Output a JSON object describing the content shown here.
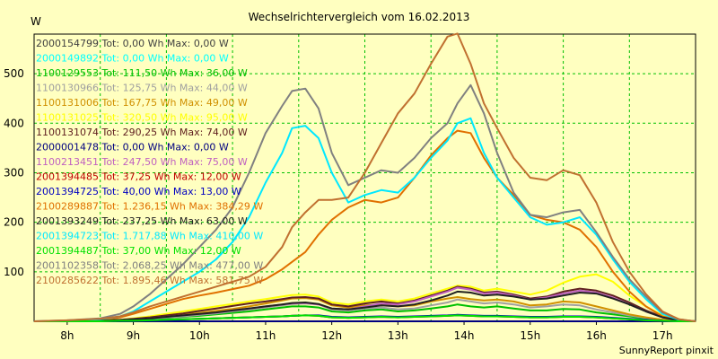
{
  "chart_data": {
    "type": "line",
    "title": "Wechselrichtervergleich vom 16.02.2013",
    "ylabel": "W",
    "footer": "SunnyReport pinxit",
    "ylim": [
      0,
      580
    ],
    "xlim": [
      7.5,
      17.5
    ],
    "grid": true,
    "legend_placement": "top-left",
    "yticks": [
      100,
      200,
      300,
      400,
      500
    ],
    "xticks": [
      {
        "value": 8,
        "label": "8h"
      },
      {
        "value": 9,
        "label": "9h"
      },
      {
        "value": 10,
        "label": "10h"
      },
      {
        "value": 11,
        "label": "11h"
      },
      {
        "value": 12,
        "label": "12h"
      },
      {
        "value": 13,
        "label": "13h"
      },
      {
        "value": 14,
        "label": "14h"
      },
      {
        "value": 15,
        "label": "15h"
      },
      {
        "value": 16,
        "label": "16h"
      },
      {
        "value": 17,
        "label": "17h"
      }
    ],
    "x": [
      7.5,
      8.0,
      8.5,
      8.8,
      9.0,
      9.25,
      9.5,
      9.75,
      10.0,
      10.25,
      10.5,
      10.75,
      11.0,
      11.25,
      11.4,
      11.6,
      11.8,
      12.0,
      12.25,
      12.5,
      12.75,
      13.0,
      13.25,
      13.5,
      13.75,
      13.9,
      14.1,
      14.3,
      14.5,
      14.75,
      15.0,
      15.25,
      15.5,
      15.75,
      16.0,
      16.25,
      16.5,
      16.75,
      17.0,
      17.25,
      17.5
    ],
    "series": [
      {
        "name": "2000154799 Tot: 0,00 Wh Max: 0,00 W",
        "color": "#404040",
        "values": [
          0,
          0,
          0,
          0,
          0,
          0,
          0,
          0,
          0,
          0,
          0,
          0,
          0,
          0,
          0,
          0,
          0,
          0,
          0,
          0,
          0,
          0,
          0,
          0,
          0,
          0,
          0,
          0,
          0,
          0,
          0,
          0,
          0,
          0,
          0,
          0,
          0,
          0,
          0,
          0,
          0
        ]
      },
      {
        "name": "2000149892 Tot: 0,00 Wh Max: 0,00 W",
        "color": "#00ffff",
        "values": [
          0,
          0,
          0,
          0,
          0,
          0,
          0,
          0,
          0,
          0,
          0,
          0,
          0,
          0,
          0,
          0,
          0,
          0,
          0,
          0,
          0,
          0,
          0,
          0,
          0,
          0,
          0,
          0,
          0,
          0,
          0,
          0,
          0,
          0,
          0,
          0,
          0,
          0,
          0,
          0,
          0
        ]
      },
      {
        "name": "1100129553 Tot: 111,50 Wh Max: 36,00 W",
        "color": "#00c000",
        "values": [
          0,
          0,
          1,
          2,
          3,
          5,
          7,
          9,
          11,
          14,
          17,
          20,
          24,
          28,
          30,
          30,
          28,
          20,
          18,
          22,
          24,
          20,
          22,
          26,
          30,
          34,
          30,
          28,
          30,
          26,
          22,
          22,
          25,
          24,
          18,
          14,
          10,
          6,
          3,
          1,
          0
        ]
      },
      {
        "name": "1100130966 Tot: 125,75 Wh Max: 44,00 W",
        "color": "#a0a0a0",
        "values": [
          0,
          0,
          1,
          2,
          3,
          5,
          8,
          10,
          13,
          16,
          20,
          24,
          28,
          32,
          35,
          36,
          34,
          24,
          22,
          26,
          28,
          24,
          26,
          32,
          38,
          44,
          40,
          36,
          38,
          34,
          28,
          30,
          34,
          32,
          24,
          18,
          12,
          7,
          3,
          1,
          0
        ]
      },
      {
        "name": "1100131006 Tot: 167,75 Wh Max: 49,00 W",
        "color": "#d09000",
        "values": [
          0,
          0,
          1,
          2,
          4,
          7,
          10,
          13,
          17,
          21,
          25,
          30,
          36,
          42,
          46,
          47,
          44,
          32,
          28,
          32,
          34,
          30,
          32,
          40,
          46,
          49,
          45,
          42,
          44,
          40,
          32,
          34,
          40,
          38,
          30,
          22,
          14,
          8,
          3,
          1,
          0
        ]
      },
      {
        "name": "1100131025 Tot: 320,50 Wh Max: 95,00 W",
        "color": "#ffff00",
        "values": [
          0,
          0,
          2,
          3,
          6,
          10,
          15,
          20,
          25,
          30,
          35,
          40,
          45,
          50,
          53,
          54,
          50,
          38,
          34,
          40,
          44,
          40,
          46,
          56,
          66,
          72,
          70,
          62,
          66,
          60,
          54,
          62,
          78,
          90,
          95,
          80,
          52,
          30,
          12,
          3,
          0
        ]
      },
      {
        "name": "1100131074 Tot: 290,25 Wh Max: 74,00 W",
        "color": "#602020",
        "values": [
          0,
          0,
          2,
          3,
          5,
          8,
          12,
          16,
          21,
          26,
          31,
          36,
          40,
          45,
          48,
          49,
          46,
          34,
          30,
          36,
          40,
          36,
          42,
          52,
          62,
          70,
          66,
          58,
          60,
          54,
          46,
          50,
          60,
          66,
          62,
          52,
          38,
          22,
          9,
          2,
          0
        ]
      },
      {
        "name": "2000001478 Tot: 0,00 Wh Max: 0,00 W",
        "color": "#000080",
        "values": [
          0,
          0,
          0,
          0,
          0,
          0,
          0,
          0,
          0,
          0,
          0,
          0,
          0,
          0,
          0,
          0,
          0,
          0,
          0,
          0,
          0,
          0,
          0,
          0,
          0,
          0,
          0,
          0,
          0,
          0,
          0,
          0,
          0,
          0,
          0,
          0,
          0,
          0,
          0,
          0,
          0
        ]
      },
      {
        "name": "1100213451 Tot: 247,50 Wh Max: 75,00 W",
        "color": "#c060c0",
        "values": [
          0,
          0,
          1,
          2,
          4,
          6,
          9,
          12,
          15,
          18,
          22,
          26,
          30,
          34,
          36,
          37,
          34,
          26,
          24,
          30,
          36,
          34,
          40,
          50,
          60,
          68,
          64,
          56,
          58,
          52,
          44,
          48,
          56,
          62,
          58,
          48,
          34,
          20,
          8,
          2,
          0
        ]
      },
      {
        "name": "2001394485 Tot: 37,25 Wh Max: 12,00 W",
        "color": "#c00000",
        "values": [
          0,
          0,
          0,
          1,
          1,
          2,
          3,
          4,
          5,
          6,
          7,
          8,
          9,
          10,
          11,
          12,
          11,
          8,
          7,
          8,
          9,
          8,
          9,
          10,
          11,
          12,
          11,
          10,
          10,
          9,
          8,
          8,
          9,
          9,
          8,
          6,
          4,
          2,
          1,
          0,
          0
        ]
      },
      {
        "name": "2001394725 Tot: 40,00 Wh Max: 13,00 W",
        "color": "#0000c0",
        "values": [
          0,
          0,
          0,
          1,
          1,
          2,
          3,
          4,
          5,
          6,
          7,
          8,
          9,
          10,
          11,
          12,
          12,
          9,
          8,
          9,
          10,
          9,
          10,
          11,
          12,
          13,
          12,
          11,
          11,
          10,
          9,
          9,
          10,
          10,
          9,
          7,
          5,
          3,
          1,
          0,
          0
        ]
      },
      {
        "name": "2100289887 Tot: 1.236,15 Wh Max: 384,29 W",
        "color": "#e07000",
        "values": [
          0,
          0,
          3,
          8,
          15,
          25,
          35,
          45,
          52,
          58,
          65,
          72,
          85,
          105,
          120,
          140,
          175,
          205,
          230,
          245,
          240,
          250,
          290,
          335,
          370,
          385,
          380,
          330,
          290,
          255,
          215,
          205,
          200,
          185,
          150,
          100,
          60,
          30,
          10,
          2,
          0
        ]
      },
      {
        "name": "2001393249 Tot: 237,25 Wh Max: 63,00 W",
        "color": "#202020",
        "values": [
          0,
          0,
          1,
          2,
          4,
          6,
          9,
          12,
          15,
          18,
          22,
          26,
          30,
          34,
          37,
          38,
          35,
          26,
          24,
          28,
          32,
          30,
          34,
          42,
          52,
          60,
          58,
          52,
          54,
          50,
          44,
          46,
          52,
          58,
          56,
          46,
          34,
          20,
          8,
          2,
          0
        ]
      },
      {
        "name": "2001394723 Tot: 1.717,88 Wh Max: 410,00 W",
        "color": "#00e8ff",
        "values": [
          0,
          1,
          4,
          10,
          20,
          40,
          60,
          80,
          100,
          125,
          160,
          210,
          280,
          340,
          390,
          395,
          370,
          300,
          240,
          255,
          265,
          260,
          290,
          330,
          365,
          400,
          410,
          340,
          290,
          250,
          210,
          195,
          200,
          210,
          175,
          125,
          80,
          45,
          15,
          3,
          0
        ]
      },
      {
        "name": "2001394487 Tot: 37,00 Wh Max: 12,00 W",
        "color": "#00e000",
        "values": [
          0,
          0,
          0,
          1,
          1,
          2,
          3,
          4,
          5,
          6,
          7,
          8,
          9,
          10,
          11,
          12,
          11,
          8,
          7,
          8,
          9,
          8,
          9,
          10,
          11,
          12,
          11,
          10,
          10,
          9,
          8,
          8,
          9,
          9,
          8,
          6,
          4,
          2,
          1,
          0,
          0
        ]
      },
      {
        "name": "2001102358 Tot: 2.068,25 Wh Max: 477,00 W",
        "color": "#808080",
        "values": [
          0,
          2,
          6,
          15,
          30,
          55,
          85,
          115,
          150,
          185,
          230,
          300,
          380,
          435,
          465,
          470,
          430,
          340,
          275,
          290,
          305,
          300,
          330,
          370,
          400,
          440,
          477,
          420,
          340,
          260,
          215,
          210,
          220,
          225,
          180,
          130,
          85,
          50,
          18,
          4,
          0
        ]
      },
      {
        "name": "2100285622 Tot: 1.895,46 Wh Max: 581,75 W",
        "color": "#c07030",
        "values": [
          0,
          2,
          5,
          10,
          18,
          30,
          40,
          50,
          60,
          70,
          80,
          90,
          110,
          150,
          190,
          220,
          245,
          245,
          250,
          300,
          360,
          420,
          460,
          520,
          575,
          581,
          520,
          440,
          390,
          330,
          290,
          285,
          305,
          295,
          240,
          160,
          100,
          55,
          20,
          4,
          0
        ]
      }
    ]
  }
}
